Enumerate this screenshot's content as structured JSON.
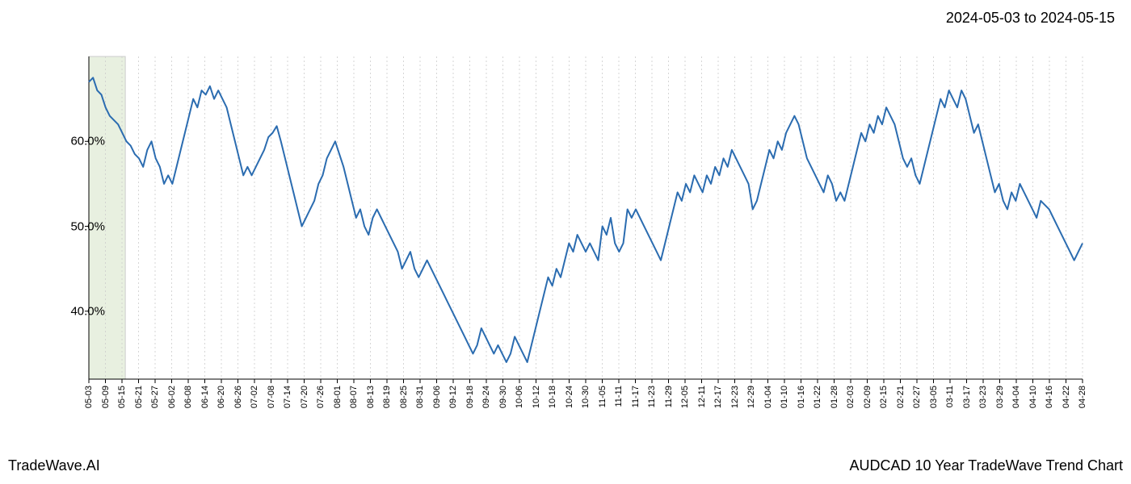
{
  "date_range": "2024-05-03 to 2024-05-15",
  "footer_left": "TradeWave.AI",
  "footer_right": "AUDCAD 10 Year TradeWave Trend Chart",
  "chart": {
    "type": "line",
    "background_color": "#ffffff",
    "line_color": "#2b6cb0",
    "line_width": 2,
    "axis_color": "#000000",
    "grid_color": "#cccccc",
    "grid_dash": "2,3",
    "highlight_band": {
      "start_idx": 0,
      "end_idx": 6,
      "fill_color": "#e8f0e0",
      "border_color": "#cccccc"
    },
    "ylim": [
      32,
      70
    ],
    "ytick_values": [
      40,
      50,
      60
    ],
    "ytick_labels": [
      "40.0%",
      "50.0%",
      "60.0%"
    ],
    "xtick_step": 3,
    "x_labels": [
      "05-03",
      "05-09",
      "05-15",
      "05-21",
      "05-27",
      "06-02",
      "06-08",
      "06-14",
      "06-20",
      "06-26",
      "07-02",
      "07-08",
      "07-14",
      "07-20",
      "07-26",
      "08-01",
      "08-07",
      "08-13",
      "08-19",
      "08-25",
      "08-31",
      "09-06",
      "09-12",
      "09-18",
      "09-24",
      "09-30",
      "10-06",
      "10-12",
      "10-18",
      "10-24",
      "10-30",
      "11-05",
      "11-11",
      "11-17",
      "11-23",
      "11-29",
      "12-05",
      "12-11",
      "12-17",
      "12-23",
      "12-29",
      "01-04",
      "01-10",
      "01-16",
      "01-22",
      "01-28",
      "02-03",
      "02-09",
      "02-15",
      "02-21",
      "02-27",
      "03-05",
      "03-11",
      "03-17",
      "03-23",
      "03-29",
      "04-04",
      "04-10",
      "04-16",
      "04-22",
      "04-28"
    ],
    "values": [
      67,
      67.5,
      66,
      65.5,
      64,
      63,
      62.5,
      62,
      61,
      60,
      59.5,
      58.5,
      58,
      57,
      59,
      60,
      58,
      57,
      55,
      56,
      55,
      57,
      59,
      61,
      63,
      65,
      64,
      66,
      65.5,
      66.5,
      65,
      66,
      65,
      64,
      62,
      60,
      58,
      56,
      57,
      56,
      57,
      58,
      59,
      60.5,
      61,
      61.8,
      60,
      58,
      56,
      54,
      52,
      50,
      51,
      52,
      53,
      55,
      56,
      58,
      59,
      60,
      58.5,
      57,
      55,
      53,
      51,
      52,
      50,
      49,
      51,
      52,
      51,
      50,
      49,
      48,
      47,
      45,
      46,
      47,
      45,
      44,
      45,
      46,
      45,
      44,
      43,
      42,
      41,
      40,
      39,
      38,
      37,
      36,
      35,
      36,
      38,
      37,
      36,
      35,
      36,
      35,
      34,
      35,
      37,
      36,
      35,
      34,
      36,
      38,
      40,
      42,
      44,
      43,
      45,
      44,
      46,
      48,
      47,
      49,
      48,
      47,
      48,
      47,
      46,
      50,
      49,
      51,
      48,
      47,
      48,
      52,
      51,
      52,
      51,
      50,
      49,
      48,
      47,
      46,
      48,
      50,
      52,
      54,
      53,
      55,
      54,
      56,
      55,
      54,
      56,
      55,
      57,
      56,
      58,
      57,
      59,
      58,
      57,
      56,
      55,
      52,
      53,
      55,
      57,
      59,
      58,
      60,
      59,
      61,
      62,
      63,
      62,
      60,
      58,
      57,
      56,
      55,
      54,
      56,
      55,
      53,
      54,
      53,
      55,
      57,
      59,
      61,
      60,
      62,
      61,
      63,
      62,
      64,
      63,
      62,
      60,
      58,
      57,
      58,
      56,
      55,
      57,
      59,
      61,
      63,
      65,
      64,
      66,
      65,
      64,
      66,
      65,
      63,
      61,
      62,
      60,
      58,
      56,
      54,
      55,
      53,
      52,
      54,
      53,
      55,
      54,
      53,
      52,
      51,
      53,
      52.5,
      52,
      51,
      50,
      49,
      48,
      47,
      46,
      47,
      48
    ]
  }
}
